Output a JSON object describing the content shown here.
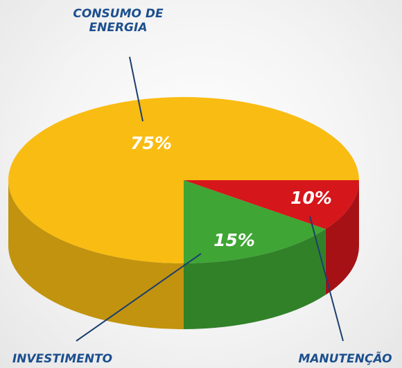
{
  "chart_data": {
    "type": "pie",
    "categories": [
      "CONSUMO DE ENERGIA",
      "INVESTIMENTO",
      "MANUTENÇÃO"
    ],
    "values": [
      75,
      15,
      10
    ],
    "value_labels": [
      "75%",
      "15%",
      "10%"
    ],
    "colors": [
      "#f9bc12",
      "#3fa535",
      "#d5161b"
    ]
  }
}
